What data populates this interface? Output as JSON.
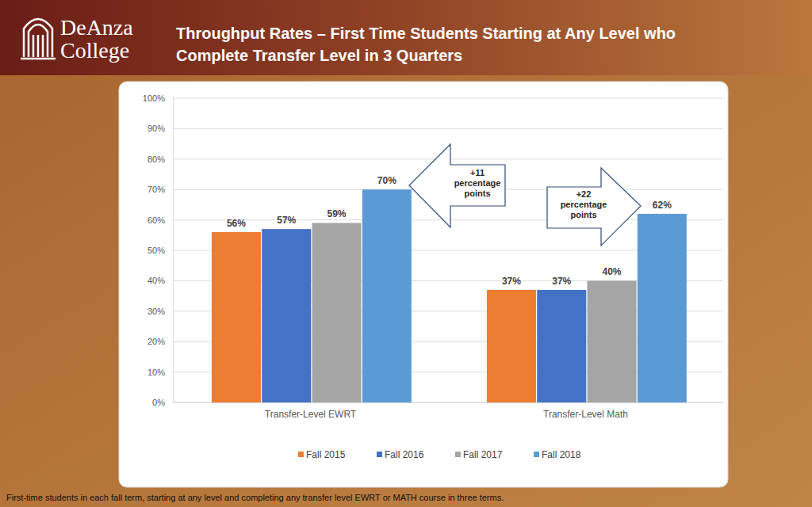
{
  "chart_data": {
    "type": "bar",
    "title": "Throughput Rates – First Time Students Starting at Any Level who Complete Transfer Level in 3 Quarters",
    "logo": [
      "DeAnza",
      "College"
    ],
    "footnote": "First-time students in each fall term, starting at any level and completing any transfer level EWRT or MATH course in three terms.",
    "categories": [
      "Transfer-Level EWRT",
      "Transfer-Level Math"
    ],
    "series": [
      {
        "name": "Fall 2015",
        "color": "#ED7D31",
        "values": [
          56,
          37
        ],
        "value_labels": [
          "56%",
          "37%"
        ]
      },
      {
        "name": "Fall 2016",
        "color": "#4472C4",
        "values": [
          57,
          37
        ],
        "value_labels": [
          "57%",
          "37%"
        ]
      },
      {
        "name": "Fall 2017",
        "color": "#A5A5A5",
        "values": [
          59,
          40
        ],
        "value_labels": [
          "59%",
          "40%"
        ]
      },
      {
        "name": "Fall 2018",
        "color": "#5B9BD5",
        "values": [
          70,
          62
        ],
        "value_labels": [
          "70%",
          "62%"
        ]
      }
    ],
    "ylim": [
      0,
      100
    ],
    "yticks": [
      {
        "value": 0,
        "label": "0%"
      },
      {
        "value": 10,
        "label": "10%"
      },
      {
        "value": 20,
        "label": "20%"
      },
      {
        "value": 30,
        "label": "30%"
      },
      {
        "value": 40,
        "label": "40%"
      },
      {
        "value": 50,
        "label": "50%"
      },
      {
        "value": 60,
        "label": "60%"
      },
      {
        "value": 70,
        "label": "70%"
      },
      {
        "value": 80,
        "label": "80%"
      },
      {
        "value": 90,
        "label": "90%"
      },
      {
        "value": 100,
        "label": "100%"
      }
    ],
    "grid": true,
    "legend": "bottom",
    "data_labels": true,
    "annotations": [
      {
        "text": "+11 percentage points"
      },
      {
        "text": "+22 percentage points"
      }
    ]
  }
}
